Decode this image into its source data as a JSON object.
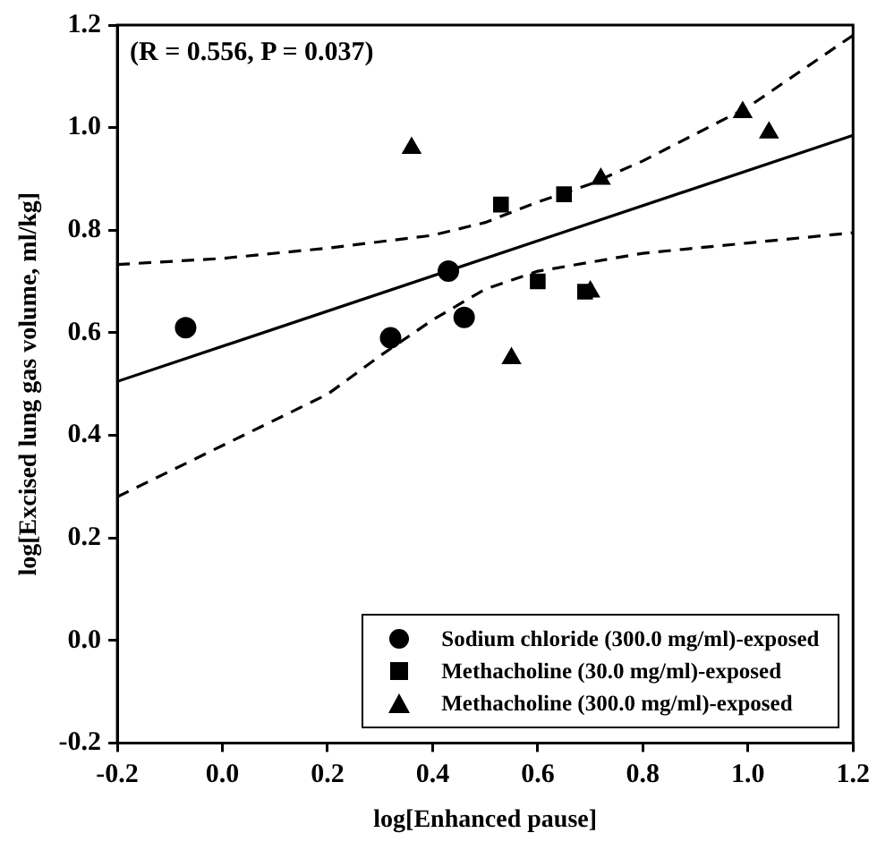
{
  "chart_data": {
    "type": "scatter",
    "xlabel": "log[Enhanced pause]",
    "ylabel": "log[Excised lung gas volume, ml/kg]",
    "annotations": [
      "(R = 0.556, P = 0.037)"
    ],
    "xlim": [
      -0.2,
      1.2
    ],
    "xticks": [
      -0.2,
      {
        "value": 0,
        "label": "0.0"
      },
      0.2,
      0.4,
      0.6,
      0.8,
      {
        "value": 1,
        "label": "1.0"
      },
      1.2
    ],
    "ylim": [
      -0.2,
      1.2
    ],
    "yticks": [
      -0.2,
      {
        "value": 0,
        "label": "0.0"
      },
      0.2,
      0.4,
      0.6,
      0.8,
      {
        "value": 1,
        "label": "1.0"
      },
      1.2
    ],
    "grid": false,
    "legend": "bottom right",
    "series": [
      {
        "name": "Sodium chloride (300.0 mg/ml)-exposed",
        "color": "#000000",
        "marker": "circle",
        "x": [
          -0.07,
          0.32,
          0.43,
          0.46
        ],
        "values": [
          0.61,
          0.59,
          0.72,
          0.63
        ]
      },
      {
        "name": "Methacholine (30.0 mg/ml)-exposed",
        "color": "#000000",
        "marker": "square",
        "x": [
          0.53,
          0.65,
          0.6,
          0.69
        ],
        "values": [
          0.85,
          0.87,
          0.7,
          0.68
        ]
      },
      {
        "name": "Methacholine (300.0 mg/ml)-exposed",
        "color": "#000000",
        "marker": "triangle",
        "x": [
          0.36,
          0.55,
          0.72,
          0.7,
          0.99,
          1.04
        ],
        "values": [
          0.96,
          0.55,
          0.9,
          0.68,
          1.03,
          0.99
        ]
      },
      {
        "type": "line",
        "color": "#000000",
        "marker": "none",
        "line_style": "solid",
        "x": [
          -0.2,
          1.2
        ],
        "values": [
          0.505,
          0.985
        ]
      },
      {
        "type": "line",
        "color": "#000000",
        "marker": "none",
        "line_style": "dashed",
        "x": [
          -0.2,
          0,
          0.2,
          0.4,
          0.5,
          0.6,
          0.7,
          0.8,
          1.0,
          1.2
        ],
        "values": [
          0.733,
          0.745,
          0.765,
          0.79,
          0.815,
          0.855,
          0.89,
          0.935,
          1.04,
          1.18
        ]
      },
      {
        "type": "line",
        "color": "#000000",
        "marker": "none",
        "line_style": "dashed",
        "x": [
          -0.2,
          0,
          0.2,
          0.3,
          0.4,
          0.5,
          0.6,
          0.8,
          1.0,
          1.2
        ],
        "values": [
          0.28,
          0.38,
          0.48,
          0.555,
          0.625,
          0.685,
          0.72,
          0.755,
          0.775,
          0.795
        ]
      }
    ]
  }
}
